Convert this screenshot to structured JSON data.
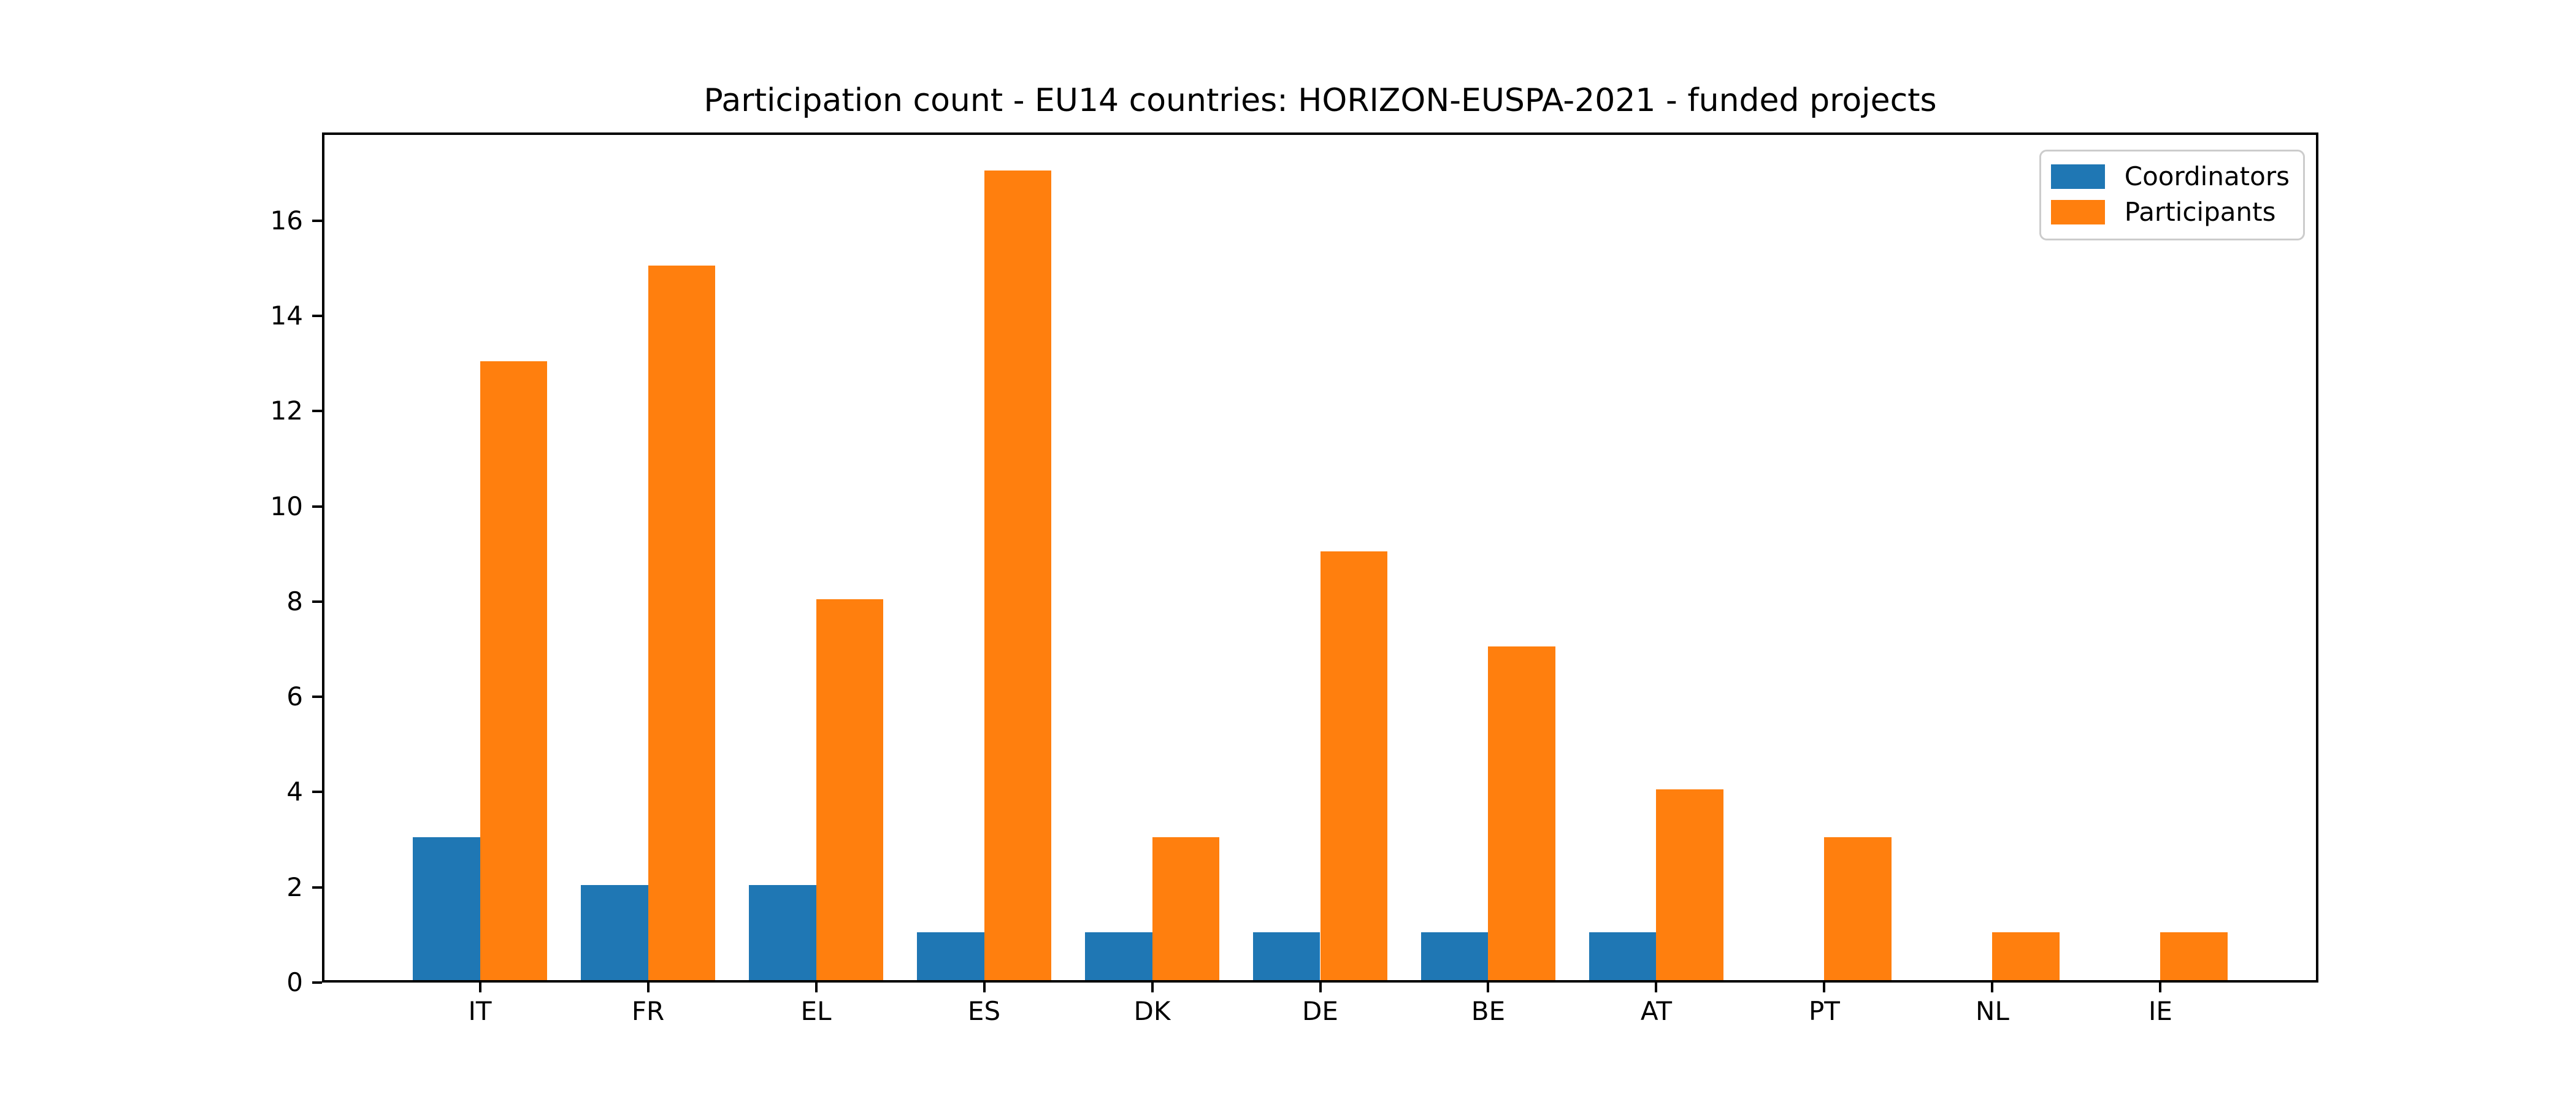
{
  "chart_data": {
    "type": "bar",
    "title": "Participation count - EU14 countries: HORIZON-EUSPA-2021 - funded projects",
    "categories": [
      "IT",
      "FR",
      "EL",
      "ES",
      "DK",
      "DE",
      "BE",
      "AT",
      "PT",
      "NL",
      "IE"
    ],
    "series": [
      {
        "name": "Coordinators",
        "color": "#1f77b4",
        "values": [
          3,
          2,
          2,
          1,
          1,
          1,
          1,
          1,
          0,
          0,
          0
        ]
      },
      {
        "name": "Participants",
        "color": "#ff7f0e",
        "values": [
          13,
          15,
          8,
          17,
          3,
          9,
          7,
          4,
          3,
          1,
          1
        ]
      }
    ],
    "xlabel": "",
    "ylabel": "",
    "yticks": [
      0,
      2,
      4,
      6,
      8,
      10,
      12,
      14,
      16
    ],
    "ylim": [
      0,
      17.85
    ],
    "xlim": [
      -0.94,
      10.94
    ],
    "bar_width": 0.4,
    "grid": false,
    "legend_position": "upper right"
  }
}
